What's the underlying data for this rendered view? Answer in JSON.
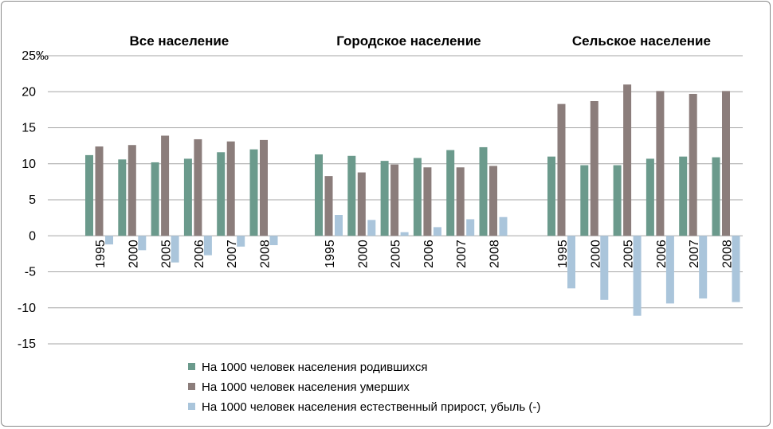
{
  "chart_data": {
    "type": "bar",
    "unit": "‰",
    "ylim": [
      -15,
      25
    ],
    "yticks": [
      25,
      20,
      15,
      10,
      5,
      0,
      -5,
      -10,
      -15
    ],
    "grid": true,
    "legend_position": "bottom",
    "colors": [
      "#6b9a8c",
      "#8b7d7b",
      "#aac5db"
    ],
    "series": [
      {
        "name": "На 1000 человек населения родившихся"
      },
      {
        "name": "На 1000 человек населения умерших"
      },
      {
        "name": "На 1000 человек населения естественный прирост, убыль (-)"
      }
    ],
    "groups": [
      {
        "title": "Все население",
        "categories": [
          "1995",
          "2000",
          "2005",
          "2006",
          "2007",
          "2008"
        ],
        "values": [
          [
            11.2,
            10.6,
            10.2,
            10.7,
            11.6,
            12.0
          ],
          [
            12.4,
            12.6,
            13.9,
            13.4,
            13.1,
            13.3
          ],
          [
            -1.2,
            -2.0,
            -3.7,
            -2.7,
            -1.5,
            -1.3
          ]
        ]
      },
      {
        "title": "Городское население",
        "categories": [
          "1995",
          "2000",
          "2005",
          "2006",
          "2007",
          "2008"
        ],
        "values": [
          [
            11.3,
            11.1,
            10.4,
            10.8,
            11.9,
            12.3
          ],
          [
            8.3,
            8.8,
            9.9,
            9.5,
            9.5,
            9.7
          ],
          [
            2.9,
            2.2,
            0.5,
            1.2,
            2.3,
            2.6
          ]
        ]
      },
      {
        "title": "Сельское население",
        "categories": [
          "1995",
          "2000",
          "2005",
          "2006",
          "2007",
          "2008"
        ],
        "values": [
          [
            11.0,
            9.8,
            9.8,
            10.7,
            11.0,
            10.9
          ],
          [
            18.3,
            18.7,
            21.0,
            20.1,
            19.7,
            20.1
          ],
          [
            -7.3,
            -8.9,
            -11.1,
            -9.4,
            -8.7,
            -9.2
          ]
        ]
      }
    ]
  }
}
